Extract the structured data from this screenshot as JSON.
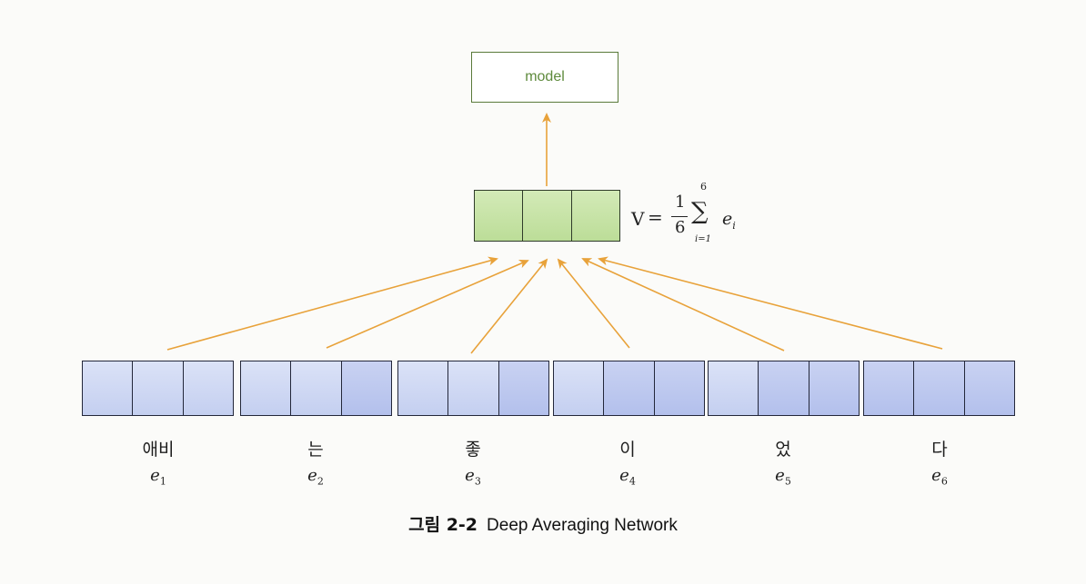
{
  "model_label": "model",
  "formula": {
    "lhs": "V",
    "eq": "=",
    "numerator": "1",
    "denominator": "6",
    "sum_symbol": "∑",
    "sum_upper": "6",
    "sum_lower": "i=1",
    "term": "e",
    "term_sub": "i"
  },
  "tokens": [
    {
      "text": "애비",
      "e": "e",
      "sub": "1"
    },
    {
      "text": "는",
      "e": "e",
      "sub": "2"
    },
    {
      "text": "좋",
      "e": "e",
      "sub": "3"
    },
    {
      "text": "이",
      "e": "e",
      "sub": "4"
    },
    {
      "text": "었",
      "e": "e",
      "sub": "5"
    },
    {
      "text": "다",
      "e": "e",
      "sub": "6"
    }
  ],
  "caption": {
    "figure_label": "그림 2-2",
    "title": "Deep Averaging Network"
  },
  "colors": {
    "arrow": "#e8a23a",
    "model_border": "#5a7a3a",
    "avg_vector": "#c7e2a8",
    "embedding": "#c9d3f2"
  }
}
